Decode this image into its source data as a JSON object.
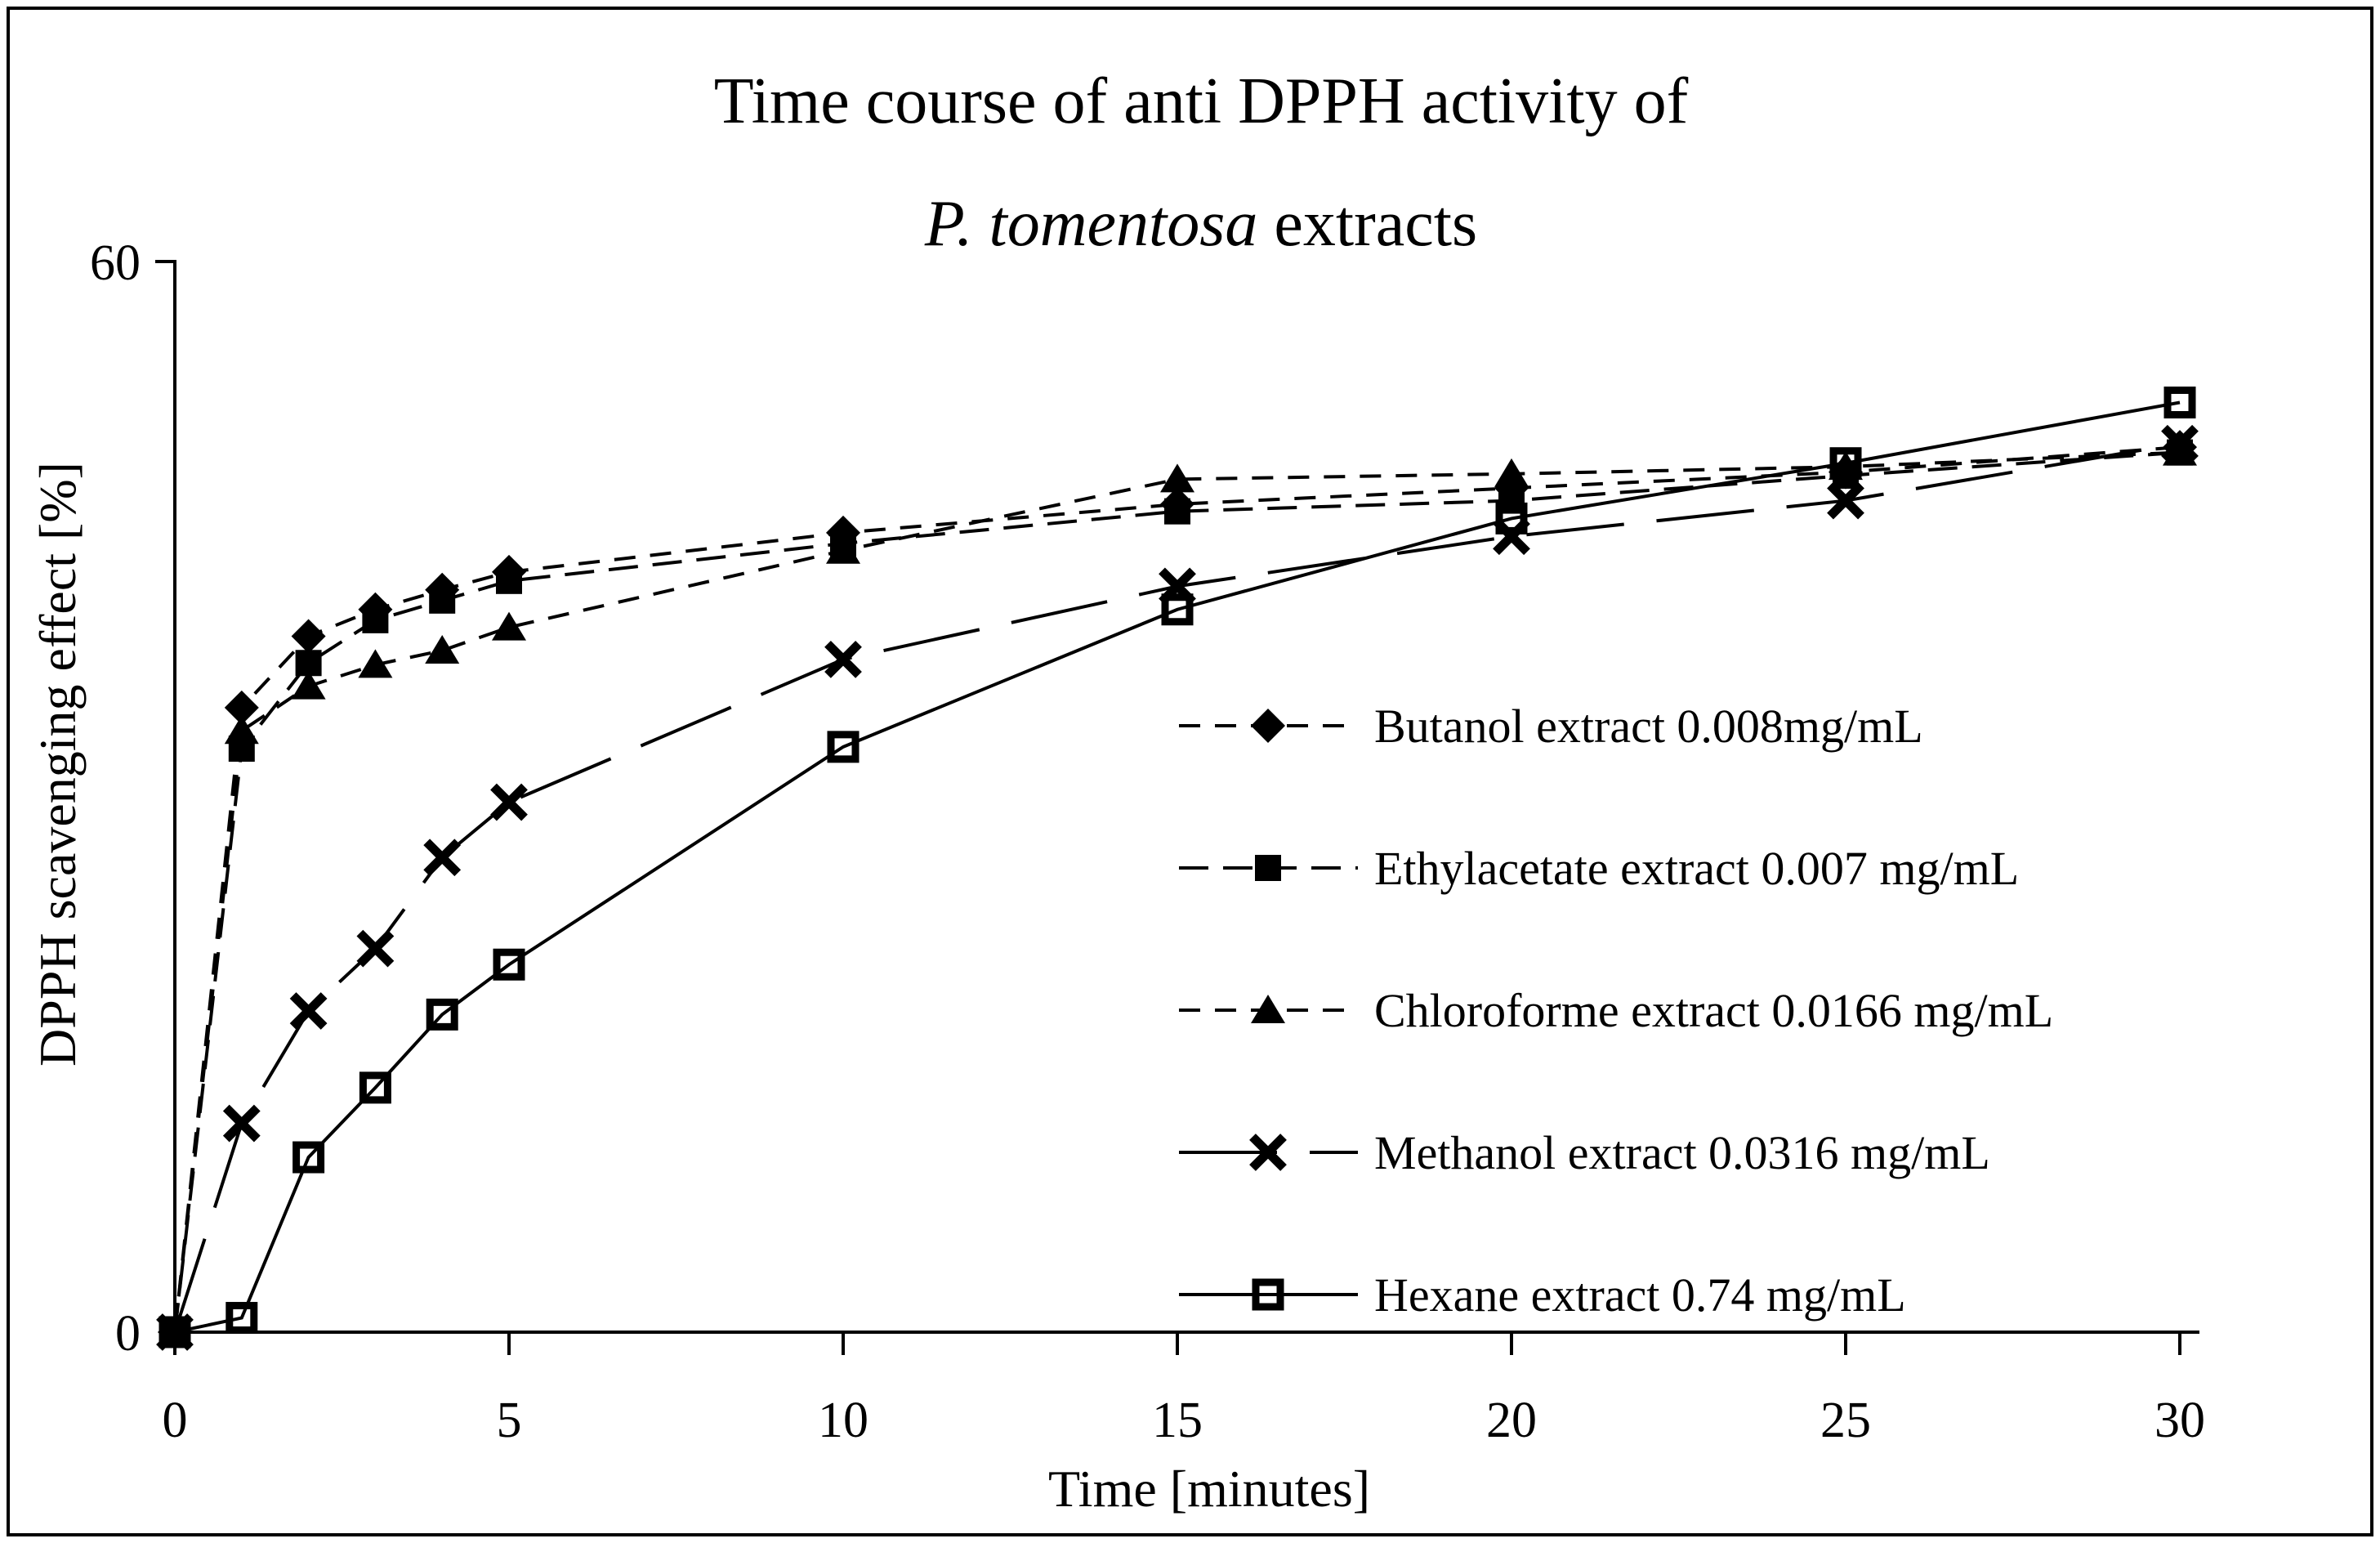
{
  "figure": {
    "title_line1": "Time course of anti DPPH activity of",
    "title_line2_italic": "P. tomentosa",
    "title_line2_rest": " extracts",
    "background": "#ffffff",
    "foreground": "#000000"
  },
  "y_axis": {
    "label": "DPPH scavenging effect [%]",
    "max_label": "60",
    "min_label": "0"
  },
  "x_axis": {
    "label": "Time [minutes]"
  },
  "chart_data": {
    "type": "line",
    "title": "Time course of anti DPPH activity of P. tomentosa extracts",
    "xlabel": "Time [minutes]",
    "ylabel": "DPPH scavenging effect [%]",
    "xlim": [
      0,
      30.5
    ],
    "ylim": [
      0,
      60
    ],
    "x_ticks": [
      0,
      5,
      10,
      15,
      20,
      25,
      30
    ],
    "y_ticks": [
      0,
      60
    ],
    "grid": false,
    "legend_position": "middle-right",
    "x": [
      0,
      1,
      2,
      3,
      4,
      5,
      10,
      15,
      20,
      25,
      30
    ],
    "series": [
      {
        "name": "Butanol extract 0.008mg/mL",
        "marker": "diamond",
        "line_style": "dash",
        "values": [
          0,
          35,
          39,
          40.5,
          41.6,
          42.6,
          44.8,
          46.4,
          47.3,
          48.2,
          49.6
        ]
      },
      {
        "name": "Ethylacetate extract 0.007 mg/mL",
        "marker": "filled-square",
        "line_style": "dash-med",
        "values": [
          0,
          32.7,
          37.5,
          39.9,
          41,
          42.1,
          44.2,
          46,
          46.6,
          48,
          49.3
        ]
      },
      {
        "name": "Chloroforme extract 0.0166 mg/mL",
        "marker": "filled-triangle",
        "line_style": "dash",
        "values": [
          0,
          33.7,
          36.2,
          37.4,
          38.2,
          39.5,
          43.8,
          47.8,
          48.1,
          48.5,
          49.3
        ]
      },
      {
        "name": "Methanol extract 0.0316 mg/mL",
        "marker": "x",
        "line_style": "long-dash",
        "values": [
          0,
          11.7,
          18,
          21.5,
          26.6,
          29.7,
          37.7,
          41.8,
          44.6,
          46.6,
          49.8
        ]
      },
      {
        "name": "Hexane extract 0.74 mg/mL",
        "marker": "open-square",
        "line_style": "solid",
        "values": [
          0,
          0.8,
          9.8,
          13.7,
          17.8,
          20.6,
          32.8,
          40.5,
          45.6,
          48.7,
          52.1
        ]
      }
    ],
    "colors": {
      "foreground": "#000000",
      "background": "#ffffff"
    }
  }
}
